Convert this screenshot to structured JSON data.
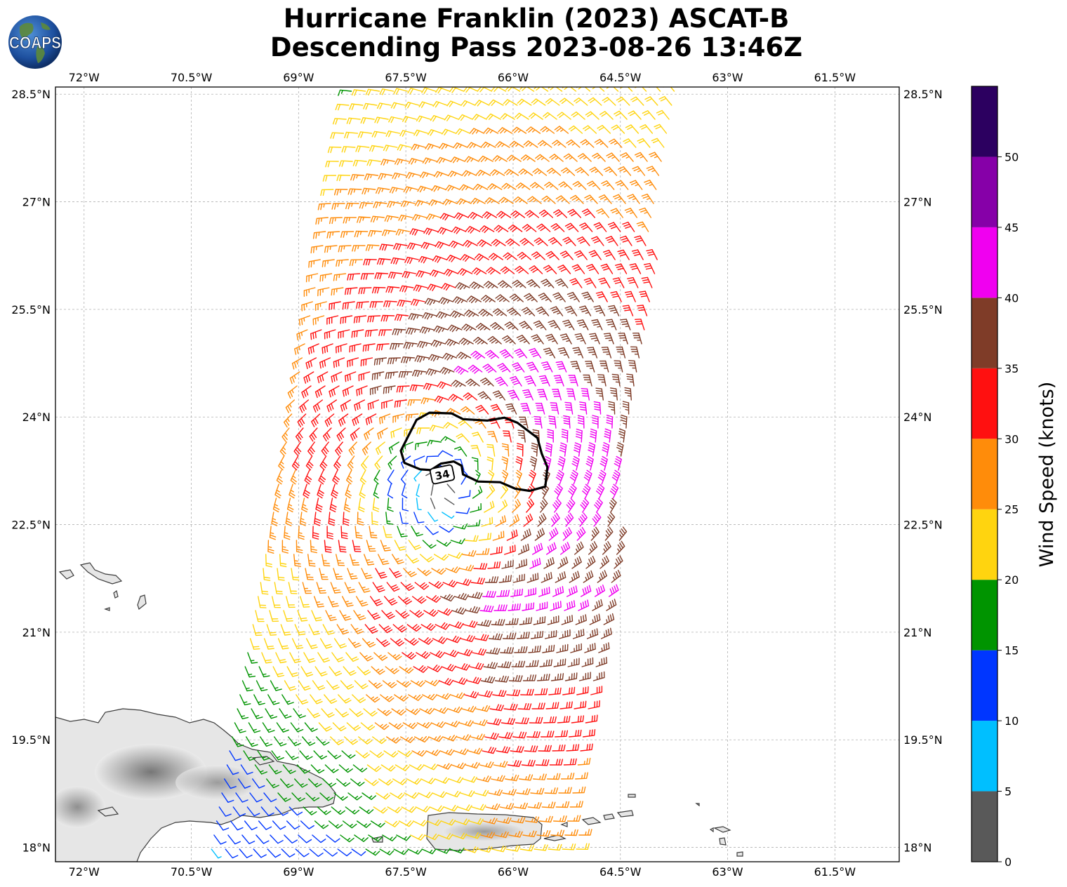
{
  "title": {
    "line1": "Hurricane Franklin (2023) ASCAT-B",
    "line2": "Descending Pass 2023-08-26 13:46Z"
  },
  "logo": {
    "text": "COAPS",
    "icon": "globe-icon"
  },
  "map": {
    "lon_range": [
      -72.4,
      -60.6
    ],
    "lat_range": [
      17.8,
      28.6
    ],
    "lon_ticks": [
      {
        "value": -72,
        "label": "72°W"
      },
      {
        "value": -70.5,
        "label": "70.5°W"
      },
      {
        "value": -69,
        "label": "69°W"
      },
      {
        "value": -67.5,
        "label": "67.5°W"
      },
      {
        "value": -66,
        "label": "66°W"
      },
      {
        "value": -64.5,
        "label": "64.5°W"
      },
      {
        "value": -63,
        "label": "63°W"
      },
      {
        "value": -61.5,
        "label": "61.5°W"
      }
    ],
    "lat_ticks": [
      {
        "value": 28.5,
        "label": "28.5°N"
      },
      {
        "value": 27,
        "label": "27°N"
      },
      {
        "value": 25.5,
        "label": "25.5°N"
      },
      {
        "value": 24,
        "label": "24°N"
      },
      {
        "value": 22.5,
        "label": "22.5°N"
      },
      {
        "value": 21,
        "label": "21°N"
      },
      {
        "value": 19.5,
        "label": "19.5°N"
      },
      {
        "value": 18,
        "label": "18°N"
      }
    ],
    "storm_center": {
      "lon": -66.9,
      "lat": 23.1
    },
    "contour_label": "34",
    "contour_34kt": [
      [
        -67.57,
        23.53
      ],
      [
        -67.35,
        23.96
      ],
      [
        -67.17,
        24.06
      ],
      [
        -66.86,
        24.05
      ],
      [
        -66.7,
        23.97
      ],
      [
        -66.36,
        23.95
      ],
      [
        -66.12,
        23.99
      ],
      [
        -65.94,
        23.92
      ],
      [
        -65.66,
        23.71
      ],
      [
        -65.6,
        23.49
      ],
      [
        -65.52,
        23.3
      ],
      [
        -65.55,
        23.03
      ],
      [
        -65.77,
        22.97
      ],
      [
        -65.97,
        23.0
      ],
      [
        -66.18,
        23.09
      ],
      [
        -66.49,
        23.1
      ],
      [
        -66.7,
        23.2
      ],
      [
        -66.72,
        23.32
      ],
      [
        -66.83,
        23.38
      ],
      [
        -67.01,
        23.35
      ],
      [
        -67.15,
        23.26
      ],
      [
        -67.3,
        23.27
      ],
      [
        -67.52,
        23.36
      ]
    ],
    "swath": {
      "corners": [
        [
          -68.31,
          28.6
        ],
        [
          -63.61,
          28.6
        ],
        [
          -65.08,
          17.8
        ],
        [
          -70.31,
          17.8
        ]
      ]
    },
    "land_features": [
      "Hispaniola",
      "Puerto Rico",
      "Turks and Caicos",
      "Virgin Islands"
    ]
  },
  "colorbar": {
    "label": "Wind Speed (knots)",
    "vmin": 0,
    "vmax": 55,
    "ticks": [
      0,
      5,
      10,
      15,
      20,
      25,
      30,
      35,
      40,
      45,
      50
    ],
    "bins": [
      {
        "from": 0,
        "to": 5,
        "color": "#595959"
      },
      {
        "from": 5,
        "to": 10,
        "color": "#00bfff"
      },
      {
        "from": 10,
        "to": 15,
        "color": "#0036ff"
      },
      {
        "from": 15,
        "to": 20,
        "color": "#009400"
      },
      {
        "from": 20,
        "to": 25,
        "color": "#ffd40f"
      },
      {
        "from": 25,
        "to": 30,
        "color": "#ff8c0a"
      },
      {
        "from": 30,
        "to": 35,
        "color": "#ff1010"
      },
      {
        "from": 35,
        "to": 40,
        "color": "#7f3c28"
      },
      {
        "from": 40,
        "to": 45,
        "color": "#f000f0"
      },
      {
        "from": 45,
        "to": 50,
        "color": "#8600a8"
      },
      {
        "from": 50,
        "to": 55,
        "color": "#2c0060"
      }
    ]
  }
}
